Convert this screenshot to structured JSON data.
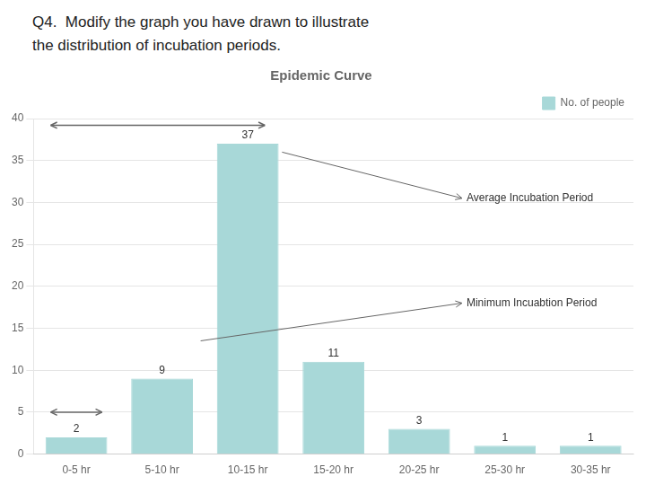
{
  "chart_data": {
    "type": "bar",
    "title": "Epidemic Curve",
    "subtitle": [
      "Q4.  Modify the graph you have drawn to illustrate",
      "the distribution of incubation periods."
    ],
    "categories": [
      "0-5 hr",
      "5-10 hr",
      "10-15 hr",
      "15-20 hr",
      "20-25 hr",
      "25-30 hr",
      "30-35 hr"
    ],
    "series": [
      {
        "name": "No. of people",
        "color": "#a8d8d8",
        "values": [
          2,
          9,
          37,
          11,
          3,
          1,
          1
        ]
      }
    ],
    "ylim": [
      0,
      40
    ],
    "yticks": [
      0,
      5,
      10,
      15,
      20,
      25,
      30,
      35,
      40
    ],
    "grid": "y",
    "legend": "upper right",
    "data_labels": true,
    "annotations": [
      {
        "text": "Average Incubation Period"
      },
      {
        "text": "Minimum Incuabtion Period"
      }
    ]
  }
}
